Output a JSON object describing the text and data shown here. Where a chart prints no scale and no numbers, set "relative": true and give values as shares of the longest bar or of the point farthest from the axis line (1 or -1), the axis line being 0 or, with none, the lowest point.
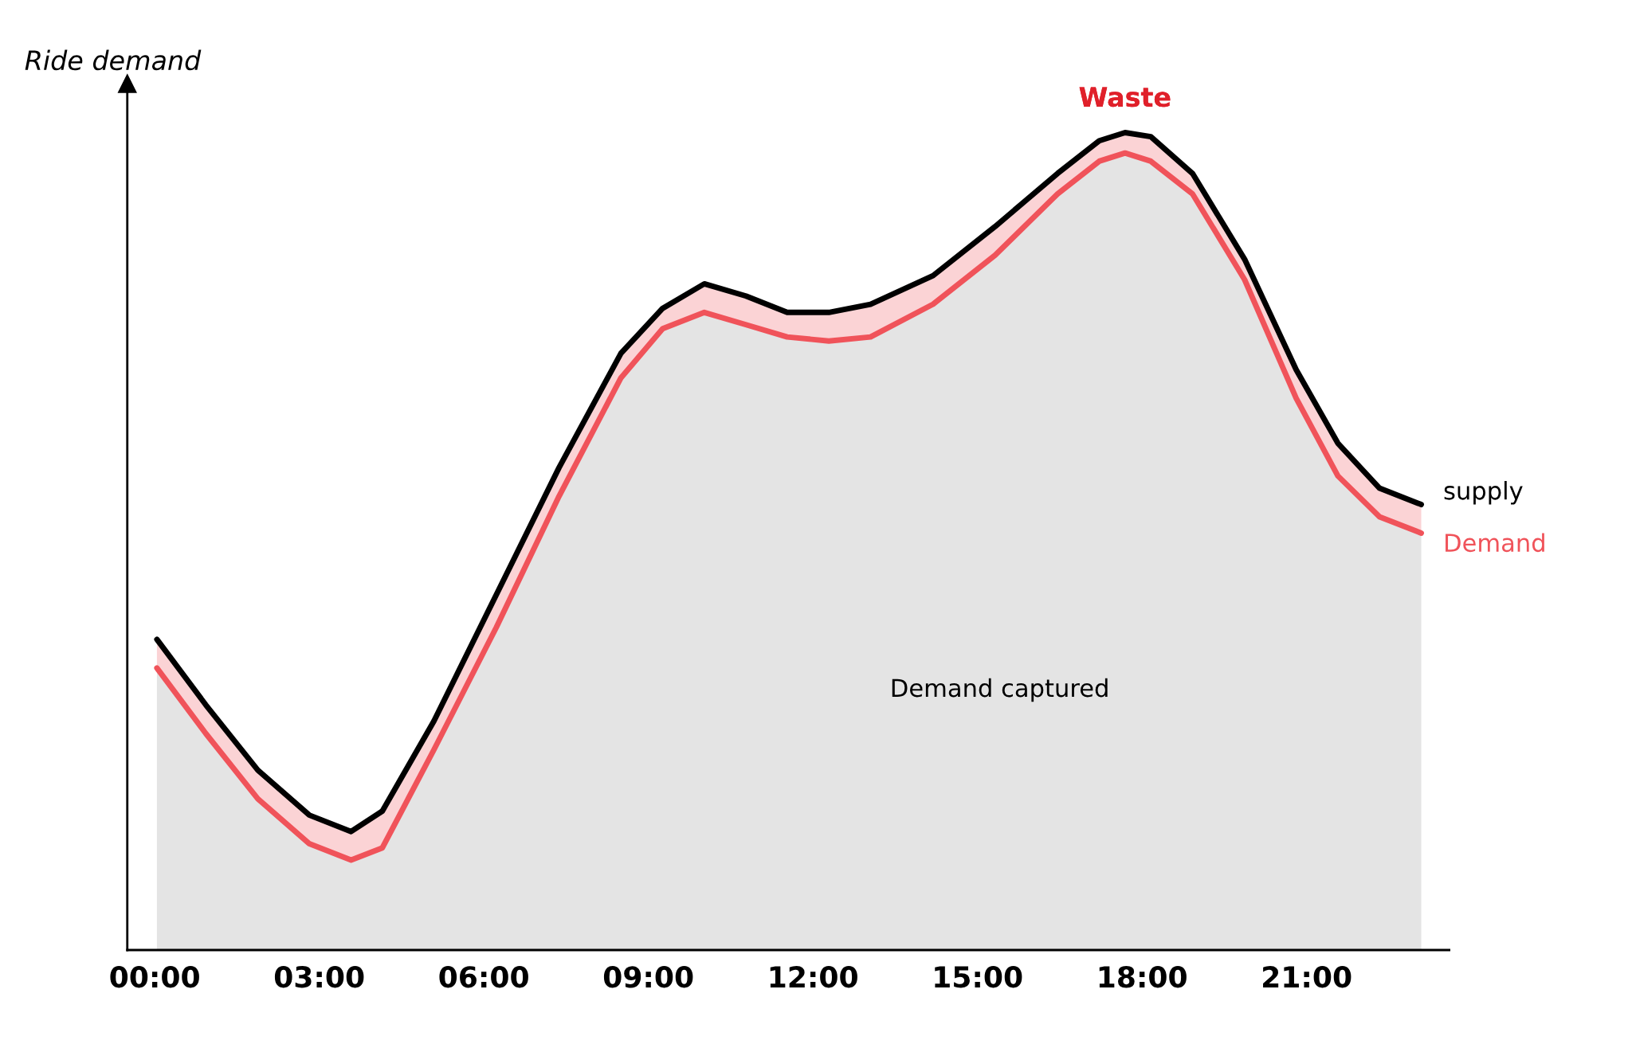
{
  "chart_data": {
    "type": "line",
    "relative": true,
    "ylabel": "Ride demand",
    "x": [
      0.04,
      0.93,
      1.88,
      2.82,
      3.58,
      4.15,
      5.09,
      6.23,
      7.37,
      8.5,
      9.26,
      10.02,
      10.78,
      11.53,
      12.29,
      13.05,
      14.19,
      15.32,
      16.46,
      17.22,
      17.69,
      18.16,
      18.92,
      19.87,
      20.81,
      21.57,
      22.33,
      23.09
    ],
    "xlim": [
      -0.5,
      23.6
    ],
    "xticks": [
      {
        "value": 0,
        "label": "00:00"
      },
      {
        "value": 3,
        "label": "03:00"
      },
      {
        "value": 6,
        "label": "06:00"
      },
      {
        "value": 9,
        "label": "09:00"
      },
      {
        "value": 12,
        "label": "12:00"
      },
      {
        "value": 15,
        "label": "15:00"
      },
      {
        "value": 18,
        "label": "18:00"
      },
      {
        "value": 21,
        "label": "21:00"
      }
    ],
    "series": [
      {
        "name": "Demand",
        "type": "area",
        "color": "#f0535a",
        "values": [
          0.345,
          0.265,
          0.185,
          0.13,
          0.11,
          0.125,
          0.245,
          0.395,
          0.555,
          0.7,
          0.76,
          0.78,
          0.765,
          0.75,
          0.745,
          0.75,
          0.79,
          0.85,
          0.925,
          0.965,
          0.975,
          0.965,
          0.925,
          0.82,
          0.675,
          0.58,
          0.53,
          0.51
        ]
      },
      {
        "name": "supply",
        "color": "#000000",
        "values": [
          0.38,
          0.3,
          0.22,
          0.165,
          0.145,
          0.17,
          0.28,
          0.435,
          0.59,
          0.73,
          0.785,
          0.815,
          0.8,
          0.78,
          0.78,
          0.79,
          0.825,
          0.885,
          0.95,
          0.99,
          1,
          0.995,
          0.95,
          0.845,
          0.71,
          0.62,
          0.565,
          0.545
        ],
        "lower": [
          0.345,
          0.265,
          0.185,
          0.13,
          0.11,
          0.125,
          0.245,
          0.395,
          0.555,
          0.7,
          0.76,
          0.78,
          0.765,
          0.75,
          0.745,
          0.75,
          0.79,
          0.85,
          0.925,
          0.965,
          0.975,
          0.965,
          0.925,
          0.82,
          0.675,
          0.58,
          0.53,
          0.51
        ],
        "upper": [
          0.38,
          0.3,
          0.22,
          0.165,
          0.145,
          0.17,
          0.28,
          0.435,
          0.59,
          0.73,
          0.785,
          0.815,
          0.8,
          0.78,
          0.78,
          0.79,
          0.825,
          0.885,
          0.95,
          0.99,
          1,
          0.995,
          0.95,
          0.845,
          0.71,
          0.62,
          0.565,
          0.545
        ]
      }
    ],
    "annotations": [
      "Waste",
      "Demand captured"
    ],
    "grid": false,
    "legend": false
  }
}
